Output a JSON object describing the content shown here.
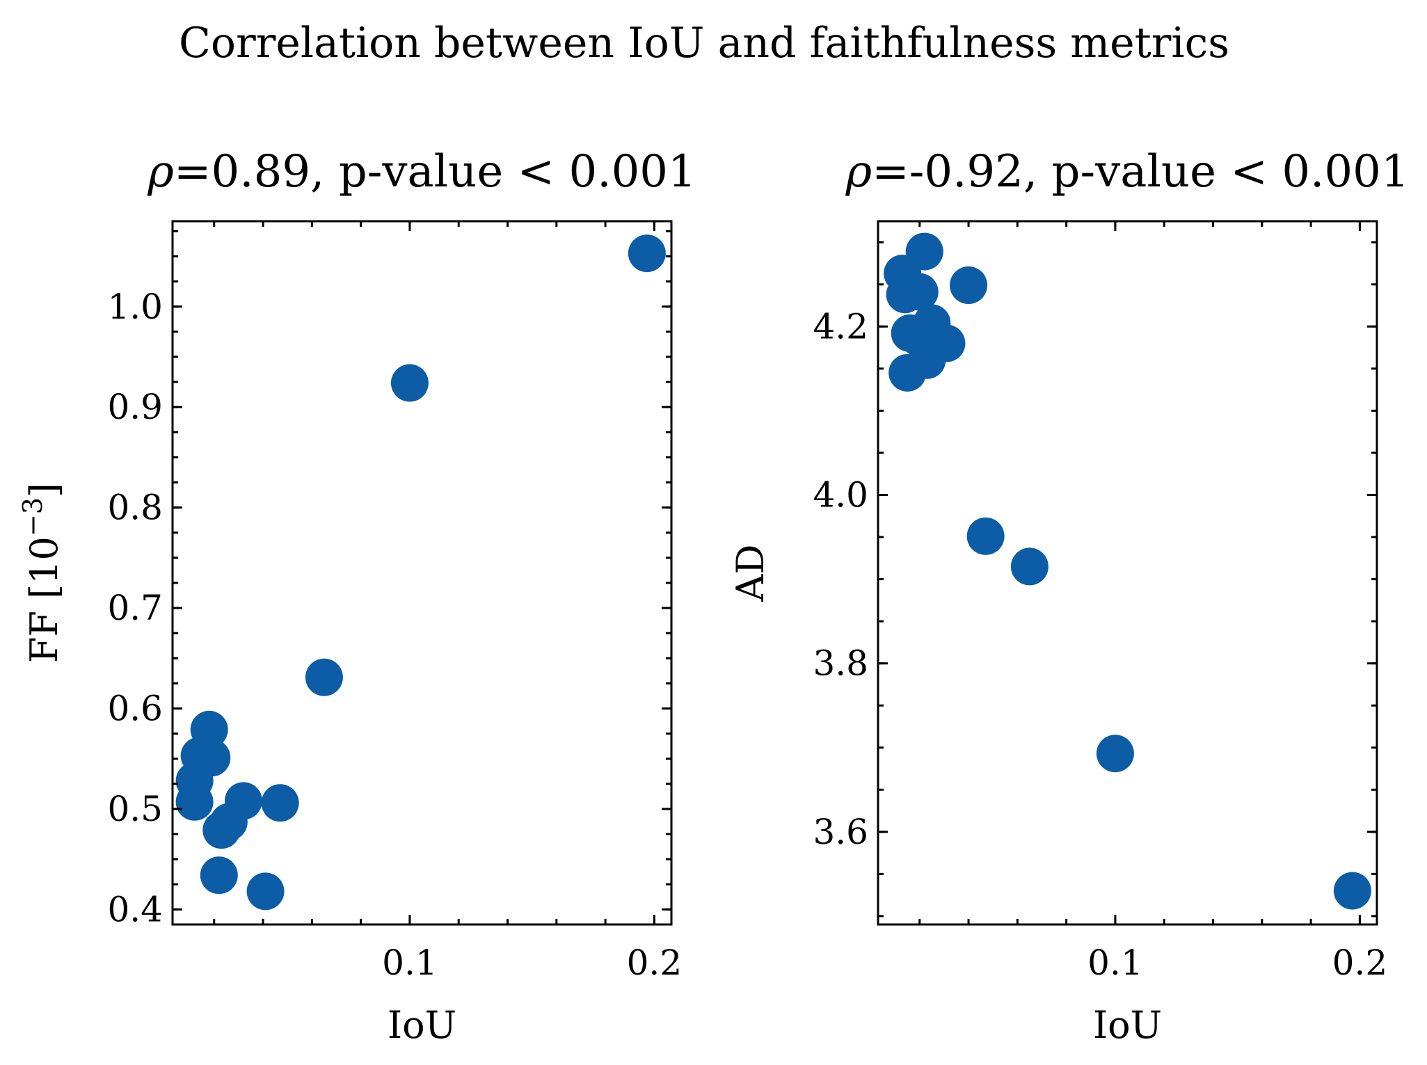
{
  "suptitle": "Correlation between IoU and faithfulness metrics",
  "point_color": "#0c5da5",
  "chart_data": [
    {
      "type": "scatter",
      "title_symbol": "ρ",
      "title_rest": "=0.89, p-value < 0.001",
      "xlabel": "IoU",
      "ylabel_base": "FF [10",
      "ylabel_exp": "−3",
      "ylabel_close": "]",
      "xlim": [
        0.003,
        0.207
      ],
      "ylim": [
        0.385,
        1.085
      ],
      "xticks": [
        0.1,
        0.2
      ],
      "xtick_labels": [
        "0.1",
        "0.2"
      ],
      "yticks": [
        0.4,
        0.5,
        0.6,
        0.7,
        0.8,
        0.9,
        1.0
      ],
      "ytick_labels": [
        "0.4",
        "0.5",
        "0.6",
        "0.7",
        "0.8",
        "0.9",
        "1.0"
      ],
      "x_minor_step": 0.02,
      "y_minor_step": 0.025,
      "points": [
        {
          "x": 0.197,
          "y": 1.053
        },
        {
          "x": 0.1,
          "y": 0.924
        },
        {
          "x": 0.065,
          "y": 0.631
        },
        {
          "x": 0.018,
          "y": 0.579
        },
        {
          "x": 0.014,
          "y": 0.553
        },
        {
          "x": 0.019,
          "y": 0.551
        },
        {
          "x": 0.012,
          "y": 0.528
        },
        {
          "x": 0.012,
          "y": 0.507
        },
        {
          "x": 0.032,
          "y": 0.508
        },
        {
          "x": 0.047,
          "y": 0.506
        },
        {
          "x": 0.026,
          "y": 0.487
        },
        {
          "x": 0.023,
          "y": 0.479
        },
        {
          "x": 0.022,
          "y": 0.434
        },
        {
          "x": 0.041,
          "y": 0.418
        }
      ]
    },
    {
      "type": "scatter",
      "title_symbol": "ρ",
      "title_rest": "=-0.92, p-value < 0.001",
      "xlabel": "IoU",
      "ylabel_base": "AD",
      "ylabel_exp": "",
      "ylabel_close": "",
      "xlim": [
        0.003,
        0.207
      ],
      "ylim": [
        3.49,
        4.325
      ],
      "xticks": [
        0.1,
        0.2
      ],
      "xtick_labels": [
        "0.1",
        "0.2"
      ],
      "yticks": [
        3.6,
        3.8,
        4.0,
        4.2
      ],
      "ytick_labels": [
        "3.6",
        "3.8",
        "4.0",
        "4.2"
      ],
      "x_minor_step": 0.02,
      "y_minor_step": 0.05,
      "points": [
        {
          "x": 0.013,
          "y": 4.263
        },
        {
          "x": 0.022,
          "y": 4.289
        },
        {
          "x": 0.04,
          "y": 4.249
        },
        {
          "x": 0.014,
          "y": 4.238
        },
        {
          "x": 0.02,
          "y": 4.241
        },
        {
          "x": 0.025,
          "y": 4.204
        },
        {
          "x": 0.016,
          "y": 4.192
        },
        {
          "x": 0.02,
          "y": 4.186
        },
        {
          "x": 0.031,
          "y": 4.18
        },
        {
          "x": 0.023,
          "y": 4.16
        },
        {
          "x": 0.015,
          "y": 4.145
        },
        {
          "x": 0.047,
          "y": 3.951
        },
        {
          "x": 0.065,
          "y": 3.915
        },
        {
          "x": 0.1,
          "y": 3.693
        },
        {
          "x": 0.197,
          "y": 3.53
        }
      ]
    }
  ]
}
